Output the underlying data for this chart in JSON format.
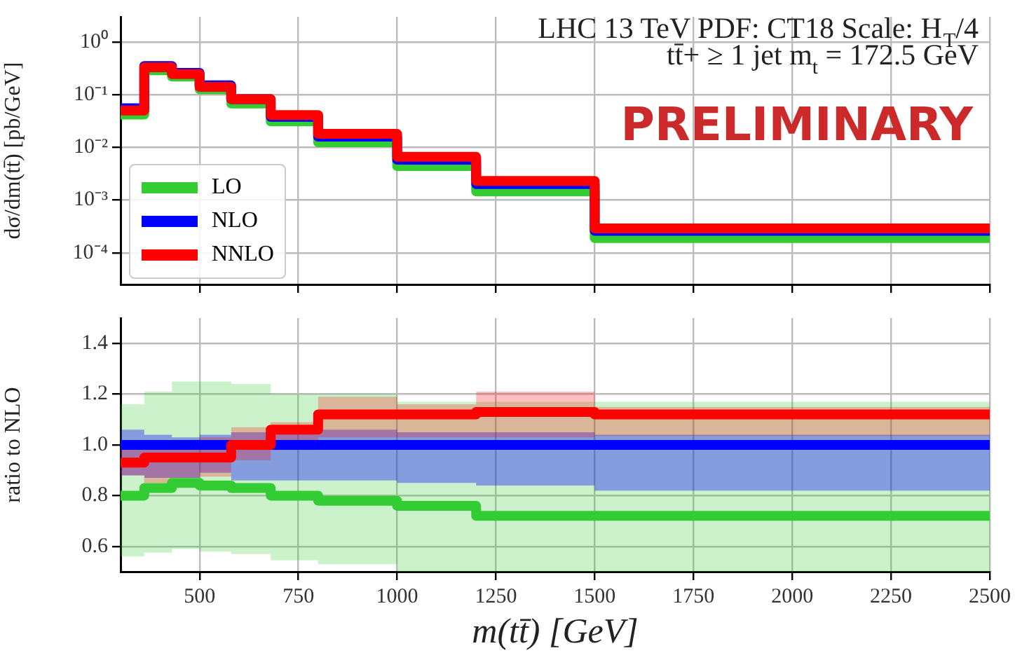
{
  "chart_data": [
    {
      "type": "histogram",
      "bins": [
        300,
        360,
        430,
        500,
        580,
        680,
        800,
        1000,
        1200,
        1500,
        2500
      ],
      "series": [
        {
          "name": "LO",
          "color": "#33cc33",
          "values": [
            0.042,
            0.29,
            0.22,
            0.126,
            0.068,
            0.031,
            0.0125,
            0.0044,
            0.00145,
            0.00019
          ]
        },
        {
          "name": "NLO",
          "color": "#0000ff",
          "values": [
            0.055,
            0.35,
            0.26,
            0.15,
            0.082,
            0.038,
            0.016,
            0.0058,
            0.002,
            0.00026
          ]
        },
        {
          "name": "NNLO",
          "color": "#ff0000",
          "values": [
            0.05,
            0.33,
            0.245,
            0.14,
            0.082,
            0.041,
            0.018,
            0.0066,
            0.0023,
            0.00029
          ]
        }
      ],
      "ylabel": "dσ/dm(tt̄) [pb/GeV]",
      "log": "y",
      "ylim": [
        2.5e-05,
        3
      ],
      "yticks": [
        {
          "value": 0.0001,
          "label": "10⁻⁴"
        },
        {
          "value": 0.001,
          "label": "10⁻³"
        },
        {
          "value": 0.01,
          "label": "10⁻²"
        },
        {
          "value": 0.1,
          "label": "10⁻¹"
        },
        {
          "value": 1,
          "label": "10⁰"
        }
      ],
      "xlim": [
        300,
        2500
      ],
      "xticks": [
        500,
        750,
        1000,
        1250,
        1500,
        1750,
        2000,
        2250,
        2500
      ],
      "tick_labels": "y",
      "grid": true,
      "legend": "bottom left",
      "marker": "none",
      "annotations": [
        "LHC 13 TeV PDF: CT18 Scale: H$_{T}$/4",
        "tt̄+ ≥ 1 jet m$_{t}$ = 172.5 GeV",
        "PRELIMINARY"
      ]
    },
    {
      "type": "step",
      "x": [
        300,
        360,
        430,
        500,
        580,
        680,
        800,
        1000,
        1200,
        1500,
        2500
      ],
      "series": [
        {
          "color": "#33cc33",
          "values": [
            0.8,
            0.83,
            0.85,
            0.84,
            0.83,
            0.8,
            0.78,
            0.76,
            0.72,
            0.72,
            0.72
          ],
          "lower": [
            0.56,
            0.575,
            0.59,
            0.58,
            0.57,
            0.545,
            0.53,
            0.5,
            0.5,
            0.5,
            0.5
          ],
          "upper": [
            1.16,
            1.21,
            1.25,
            1.25,
            1.24,
            1.2,
            1.2,
            1.17,
            1.17,
            1.17,
            1.17
          ]
        },
        {
          "color": "#0000ff",
          "values": [
            1.0,
            1.0,
            1.0,
            1.0,
            1.0,
            1.0,
            1.0,
            1.0,
            1.0,
            1.0,
            1.0
          ],
          "lower": [
            0.88,
            0.87,
            0.87,
            0.89,
            0.86,
            0.86,
            0.86,
            0.85,
            0.84,
            0.82,
            0.82
          ],
          "upper": [
            1.06,
            1.04,
            1.03,
            1.04,
            1.05,
            1.05,
            1.06,
            1.05,
            1.05,
            1.04,
            1.04
          ]
        },
        {
          "color": "#ff0000",
          "values": [
            0.93,
            0.95,
            0.95,
            0.95,
            1.0,
            1.06,
            1.12,
            1.12,
            1.13,
            1.12,
            1.12
          ],
          "lower": [
            0.88,
            0.85,
            0.87,
            0.875,
            0.94,
            0.98,
            1.03,
            1.03,
            1.03,
            1.035,
            1.035
          ],
          "upper": [
            0.99,
            1.0,
            1.02,
            1.03,
            1.07,
            1.09,
            1.19,
            1.16,
            1.21,
            1.15,
            1.15
          ]
        }
      ],
      "xlabel": "m(tt̄) [GeV]",
      "ylabel": "ratio to NLO",
      "ylim": [
        0.5,
        1.5
      ],
      "yticks": [
        0.6,
        0.8,
        {
          "value": 1.0,
          "label": "1.0"
        },
        1.2,
        1.4
      ],
      "xlim": [
        300,
        2500
      ],
      "xticks": [
        500,
        750,
        1000,
        1250,
        1500,
        1750,
        2000,
        2250,
        2500
      ],
      "grid": true,
      "marker": "none"
    }
  ]
}
